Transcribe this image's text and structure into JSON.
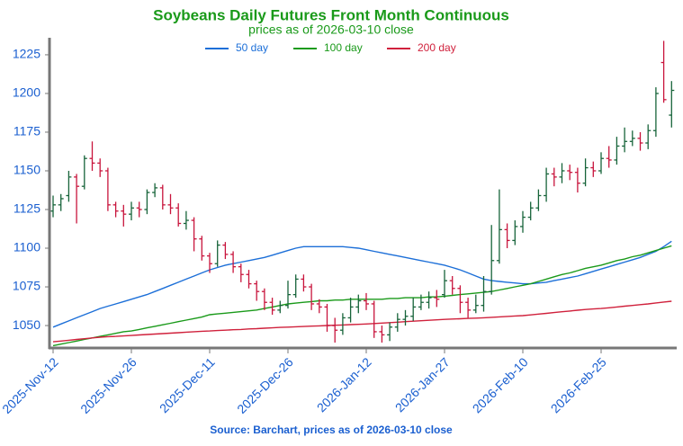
{
  "chart_data": {
    "type": "ohlc",
    "title": "Soybeans Daily Futures Front Month Continuous",
    "subtitle": "prices as of 2026-03-10 close",
    "source": "Source: Barchart, prices as of 2026-03-10 close",
    "categories": [
      "2025-Nov-12",
      null,
      null,
      null,
      null,
      null,
      null,
      null,
      null,
      null,
      "2025-Nov-26",
      null,
      null,
      null,
      null,
      null,
      null,
      null,
      null,
      null,
      "2025-Dec-11",
      null,
      null,
      null,
      null,
      null,
      null,
      null,
      null,
      null,
      "2025-Dec-26",
      null,
      null,
      null,
      null,
      null,
      null,
      null,
      null,
      null,
      "2026-Jan-12",
      null,
      null,
      null,
      null,
      null,
      null,
      null,
      null,
      null,
      "2026-Jan-27",
      null,
      null,
      null,
      null,
      null,
      null,
      null,
      null,
      null,
      "2026-Feb-10",
      null,
      null,
      null,
      null,
      null,
      null,
      null,
      null,
      null,
      "2026-Feb-25",
      null,
      null,
      null,
      null,
      null,
      null,
      null,
      null,
      null
    ],
    "open": [
      1124,
      1128,
      1134,
      1146,
      1140,
      1158,
      1155,
      1150,
      1128,
      1124,
      1122,
      1126,
      1125,
      1136,
      1139,
      1128,
      1126,
      1116,
      1118,
      1106,
      1095,
      1090,
      1102,
      1096,
      1088,
      1083,
      1077,
      1072,
      1065,
      1060,
      1063,
      1070,
      1080,
      1075,
      1064,
      1062,
      1050,
      1047,
      1055,
      1062,
      1066,
      1064,
      1046,
      1044,
      1049,
      1054,
      1056,
      1062,
      1065,
      1068,
      1070,
      1079,
      1074,
      1065,
      1060,
      1063,
      1072,
      1092,
      1112,
      1105,
      1114,
      1120,
      1126,
      1134,
      1148,
      1146,
      1150,
      1149,
      1142,
      1152,
      1150,
      1158,
      1157,
      1166,
      1169,
      1171,
      1168,
      1176,
      1220,
      1186
    ],
    "high": [
      1134,
      1135,
      1150,
      1148,
      1160,
      1169,
      1158,
      1152,
      1130,
      1128,
      1130,
      1130,
      1138,
      1142,
      1141,
      1135,
      1129,
      1124,
      1120,
      1108,
      1097,
      1105,
      1104,
      1098,
      1090,
      1086,
      1079,
      1074,
      1068,
      1066,
      1079,
      1083,
      1083,
      1077,
      1067,
      1064,
      1055,
      1058,
      1068,
      1070,
      1071,
      1066,
      1050,
      1052,
      1058,
      1060,
      1068,
      1070,
      1072,
      1073,
      1086,
      1082,
      1076,
      1068,
      1070,
      1082,
      1115,
      1138,
      1116,
      1118,
      1124,
      1130,
      1138,
      1152,
      1152,
      1155,
      1154,
      1152,
      1158,
      1156,
      1162,
      1166,
      1172,
      1178,
      1176,
      1175,
      1180,
      1204,
      1234,
      1208
    ],
    "low": [
      1120,
      1124,
      1130,
      1116,
      1138,
      1150,
      1146,
      1124,
      1120,
      1114,
      1118,
      1120,
      1122,
      1133,
      1125,
      1122,
      1114,
      1112,
      1098,
      1092,
      1084,
      1088,
      1093,
      1084,
      1078,
      1074,
      1066,
      1060,
      1057,
      1058,
      1061,
      1068,
      1072,
      1060,
      1058,
      1046,
      1039,
      1044,
      1052,
      1058,
      1060,
      1042,
      1039,
      1040,
      1046,
      1050,
      1053,
      1060,
      1061,
      1062,
      1068,
      1070,
      1058,
      1055,
      1058,
      1059,
      1070,
      1090,
      1100,
      1102,
      1110,
      1118,
      1124,
      1130,
      1140,
      1142,
      1144,
      1136,
      1140,
      1146,
      1148,
      1152,
      1154,
      1162,
      1166,
      1163,
      1164,
      1172,
      1194,
      1178
    ],
    "close": [
      1128,
      1132,
      1146,
      1140,
      1158,
      1155,
      1150,
      1128,
      1124,
      1122,
      1126,
      1125,
      1136,
      1139,
      1128,
      1126,
      1116,
      1118,
      1106,
      1095,
      1090,
      1102,
      1096,
      1088,
      1083,
      1077,
      1072,
      1065,
      1060,
      1063,
      1070,
      1080,
      1075,
      1064,
      1062,
      1050,
      1047,
      1055,
      1062,
      1066,
      1064,
      1046,
      1044,
      1049,
      1054,
      1056,
      1062,
      1065,
      1068,
      1067,
      1079,
      1074,
      1065,
      1060,
      1063,
      1072,
      1092,
      1112,
      1105,
      1114,
      1120,
      1126,
      1134,
      1148,
      1146,
      1150,
      1149,
      1142,
      1152,
      1150,
      1158,
      1157,
      1166,
      1169,
      1171,
      1168,
      1176,
      1200,
      1196,
      1202
    ],
    "up_color": "#17643a",
    "down_color": "#c8143c",
    "series": [
      {
        "name": "50 day",
        "color": "#1c6fd8",
        "values": [
          1049,
          1051,
          1053,
          1055,
          1057,
          1059,
          1061,
          1062.5,
          1064,
          1065.5,
          1067,
          1068.5,
          1070,
          1072,
          1074,
          1076,
          1078,
          1080,
          1082,
          1084,
          1086,
          1087.5,
          1089,
          1090,
          1091,
          1092,
          1093,
          1094,
          1095.5,
          1097,
          1098.5,
          1100,
          1101,
          1101,
          1101,
          1101,
          1101,
          1101,
          1100.5,
          1100,
          1099,
          1098,
          1097,
          1096,
          1095,
          1094,
          1093,
          1092,
          1091,
          1090,
          1089,
          1087.5,
          1086,
          1084,
          1082,
          1080,
          1079,
          1078.5,
          1078,
          1077.5,
          1077,
          1077,
          1077.5,
          1078,
          1079,
          1080,
          1081,
          1082,
          1083.5,
          1085,
          1086.5,
          1088,
          1089.5,
          1091,
          1092.5,
          1094,
          1096,
          1098,
          1101,
          1104.5
        ]
      },
      {
        "name": "100 day",
        "color": "#1a9a1a",
        "values": [
          1037,
          1038,
          1039,
          1040,
          1041,
          1042,
          1043,
          1044,
          1045,
          1046,
          1046.5,
          1047.5,
          1048.5,
          1049.5,
          1050.5,
          1051.5,
          1052.5,
          1053.5,
          1054.5,
          1055.5,
          1057,
          1057.5,
          1058,
          1058.5,
          1059,
          1059.5,
          1060,
          1061,
          1062,
          1063,
          1064,
          1064.5,
          1065,
          1065.5,
          1066,
          1066,
          1066.5,
          1066.5,
          1067,
          1067,
          1067,
          1067,
          1067,
          1067.5,
          1067.5,
          1068,
          1068,
          1068,
          1068.5,
          1068.5,
          1069,
          1069.5,
          1070,
          1070.5,
          1071,
          1071.5,
          1072,
          1073,
          1074,
          1075,
          1076,
          1077,
          1078.5,
          1080,
          1081.5,
          1083,
          1084,
          1085.5,
          1087,
          1088,
          1089,
          1090.5,
          1092,
          1093,
          1094.5,
          1095.5,
          1097,
          1098.5,
          1100,
          1101.5
        ]
      },
      {
        "name": "200 day",
        "color": "#d0213c",
        "values": [
          1039.5,
          1040,
          1040.5,
          1041,
          1041.5,
          1042,
          1042.5,
          1042.8,
          1043,
          1043.3,
          1043.6,
          1043.9,
          1044.2,
          1044.5,
          1044.8,
          1045.1,
          1045.4,
          1045.7,
          1046,
          1046.3,
          1046.5,
          1046.8,
          1047,
          1047.3,
          1047.5,
          1047.8,
          1048,
          1048.3,
          1048.5,
          1048.8,
          1049,
          1049.2,
          1049.4,
          1049.6,
          1049.8,
          1050,
          1050.2,
          1050.4,
          1050.6,
          1050.8,
          1051,
          1051.3,
          1051.6,
          1051.9,
          1052.2,
          1052.5,
          1052.8,
          1053.1,
          1053.4,
          1053.7,
          1054,
          1054.2,
          1054.4,
          1054.6,
          1054.8,
          1055,
          1055.3,
          1055.6,
          1055.9,
          1056.2,
          1056.4,
          1056.9,
          1057.4,
          1057.9,
          1058.4,
          1058.9,
          1059.4,
          1059.9,
          1060.4,
          1060.7,
          1061,
          1061.5,
          1062,
          1062.5,
          1063,
          1063.5,
          1064,
          1064.6,
          1065.2,
          1065.7
        ]
      }
    ],
    "ylim": [
      1035.5,
      1236
    ],
    "yticks": [
      1050,
      1075,
      1100,
      1125,
      1150,
      1175,
      1200,
      1225
    ],
    "grid": false
  }
}
